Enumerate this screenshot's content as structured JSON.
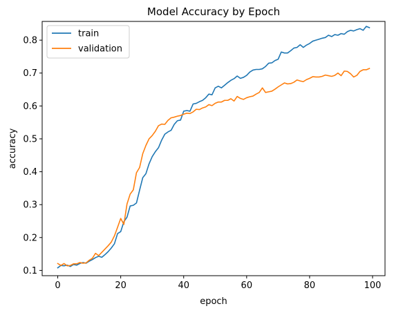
{
  "chart_data": {
    "type": "line",
    "title": "Model Accuracy by Epoch",
    "xlabel": "epoch",
    "ylabel": "accuracy",
    "xlim": [
      -4.95,
      103.95
    ],
    "ylim": [
      0.084,
      0.857
    ],
    "xticks": [
      0,
      20,
      40,
      60,
      80,
      100
    ],
    "yticks": [
      0.1,
      0.2,
      0.3,
      0.4,
      0.5,
      0.6,
      0.7,
      0.8
    ],
    "grid": false,
    "legend_position": "top-left",
    "series": [
      {
        "name": "train",
        "color": "#1f77b4",
        "values": [
          0.108,
          0.115,
          0.114,
          0.116,
          0.112,
          0.118,
          0.116,
          0.121,
          0.124,
          0.122,
          0.128,
          0.133,
          0.139,
          0.143,
          0.14,
          0.148,
          0.157,
          0.168,
          0.181,
          0.212,
          0.218,
          0.248,
          0.262,
          0.296,
          0.298,
          0.305,
          0.344,
          0.382,
          0.394,
          0.424,
          0.446,
          0.461,
          0.473,
          0.496,
          0.514,
          0.521,
          0.526,
          0.544,
          0.555,
          0.557,
          0.584,
          0.586,
          0.584,
          0.606,
          0.608,
          0.613,
          0.617,
          0.625,
          0.636,
          0.634,
          0.655,
          0.66,
          0.655,
          0.663,
          0.671,
          0.678,
          0.683,
          0.691,
          0.684,
          0.687,
          0.693,
          0.703,
          0.709,
          0.711,
          0.711,
          0.713,
          0.72,
          0.73,
          0.731,
          0.738,
          0.742,
          0.764,
          0.761,
          0.761,
          0.768,
          0.776,
          0.778,
          0.786,
          0.778,
          0.785,
          0.79,
          0.797,
          0.8,
          0.803,
          0.806,
          0.808,
          0.815,
          0.811,
          0.817,
          0.815,
          0.82,
          0.818,
          0.826,
          0.83,
          0.828,
          0.832,
          0.835,
          0.83,
          0.842,
          0.838
        ]
      },
      {
        "name": "validation",
        "color": "#ff7f0e",
        "values": [
          0.121,
          0.115,
          0.121,
          0.114,
          0.115,
          0.12,
          0.12,
          0.124,
          0.122,
          0.123,
          0.131,
          0.137,
          0.152,
          0.145,
          0.155,
          0.165,
          0.175,
          0.186,
          0.205,
          0.231,
          0.258,
          0.24,
          0.302,
          0.332,
          0.345,
          0.397,
          0.413,
          0.455,
          0.48,
          0.5,
          0.51,
          0.523,
          0.54,
          0.545,
          0.544,
          0.556,
          0.564,
          0.566,
          0.569,
          0.571,
          0.575,
          0.578,
          0.577,
          0.582,
          0.59,
          0.589,
          0.594,
          0.597,
          0.604,
          0.601,
          0.608,
          0.612,
          0.612,
          0.617,
          0.617,
          0.622,
          0.615,
          0.629,
          0.623,
          0.62,
          0.625,
          0.628,
          0.63,
          0.636,
          0.641,
          0.655,
          0.641,
          0.643,
          0.645,
          0.651,
          0.658,
          0.664,
          0.67,
          0.667,
          0.668,
          0.672,
          0.679,
          0.676,
          0.674,
          0.68,
          0.684,
          0.689,
          0.688,
          0.688,
          0.69,
          0.694,
          0.692,
          0.69,
          0.693,
          0.7,
          0.692,
          0.706,
          0.705,
          0.698,
          0.688,
          0.693,
          0.705,
          0.71,
          0.71,
          0.714
        ]
      }
    ]
  }
}
